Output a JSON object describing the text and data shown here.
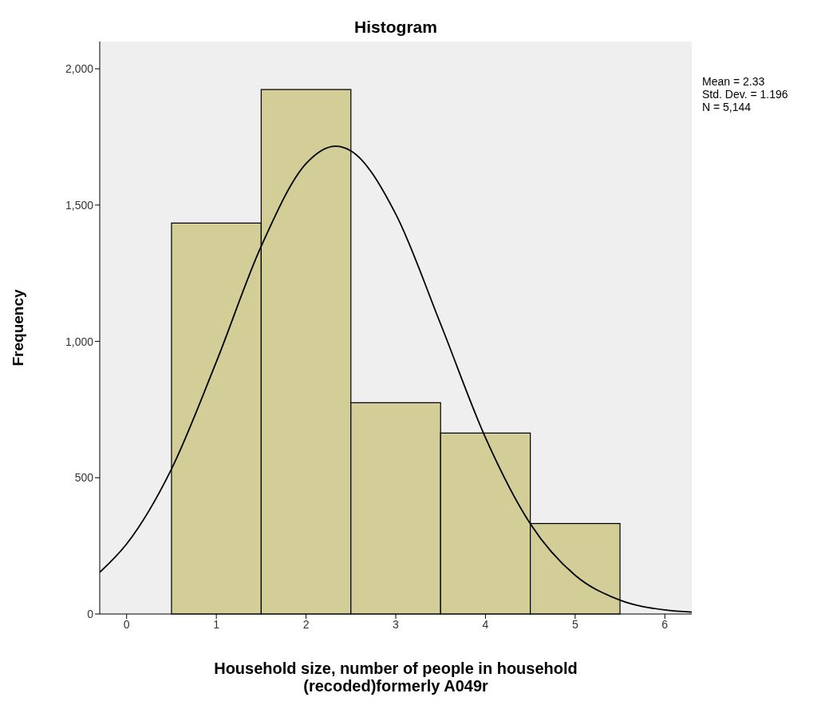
{
  "chart_data": {
    "type": "histogram",
    "title": "Histogram",
    "xlabel": "Household size, number of people in household\n(recoded)formerly A049r",
    "ylabel": "Frequency",
    "bins": [
      0.5,
      1.5,
      2.5,
      3.5,
      4.5,
      5.5
    ],
    "values": [
      1434,
      1924,
      775,
      664,
      332
    ],
    "color": "#d3ce97",
    "series": [
      {
        "type": "line",
        "color": "#000000",
        "x": [
          -0.3,
          0,
          0.5,
          1,
          1.5,
          2,
          2.33,
          2.5,
          3,
          3.5,
          4,
          4.5,
          5,
          5.5,
          6,
          6.3
        ],
        "values": [
          153,
          257,
          532,
          925,
          1349,
          1652,
          1716,
          1699,
          1467,
          1064,
          647,
          331,
          142,
          51,
          15,
          7
        ]
      }
    ],
    "xlim": [
      -0.3,
      6.3
    ],
    "xticks": [
      0,
      1,
      2,
      3,
      4,
      5,
      6
    ],
    "ylim": [
      0,
      2100
    ],
    "yticks": [
      0,
      500,
      {
        "value": 1000,
        "label": "1,000"
      },
      {
        "value": 1500,
        "label": "1,500"
      },
      {
        "value": 2000,
        "label": "2,000"
      }
    ],
    "marker": "none",
    "line_style": "solid",
    "annotations": [
      "Mean = 2.33",
      "Std. Dev. = 1.196",
      "N = 5,144"
    ]
  }
}
